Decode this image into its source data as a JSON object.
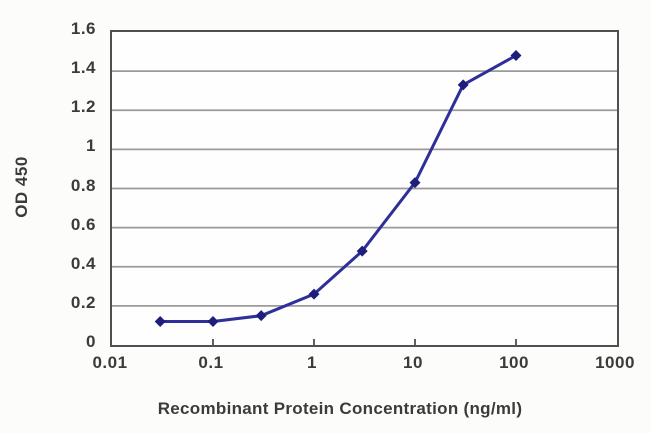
{
  "chart_data": {
    "type": "line",
    "x": [
      0.03,
      0.1,
      0.3,
      1,
      3,
      10,
      30,
      100
    ],
    "y": [
      0.12,
      0.12,
      0.15,
      0.26,
      0.48,
      0.83,
      1.33,
      1.48
    ],
    "xlabel": "Recombinant Protein Concentration (ng/ml)",
    "ylabel": "OD 450",
    "x_scale": "log",
    "xlim": [
      0.01,
      1000
    ],
    "ylim": [
      0,
      1.6
    ],
    "x_ticks": [
      "0.01",
      "0.1",
      "1",
      "10",
      "100",
      "1000"
    ],
    "y_ticks": [
      "0",
      "0.2",
      "0.4",
      "0.6",
      "0.8",
      "1",
      "1.2",
      "1.4",
      "1.6"
    ],
    "grid": "horizontal",
    "legend": "none",
    "marker": "diamond",
    "colors": {
      "line": "#2f2f99",
      "marker": "#1e1e7d",
      "gridline": "#9a9a9a",
      "plot_border": "#4f4f4f",
      "text": "#3b3b3b",
      "background": "#fcfdfa",
      "plot_background": "#fefefe"
    }
  }
}
